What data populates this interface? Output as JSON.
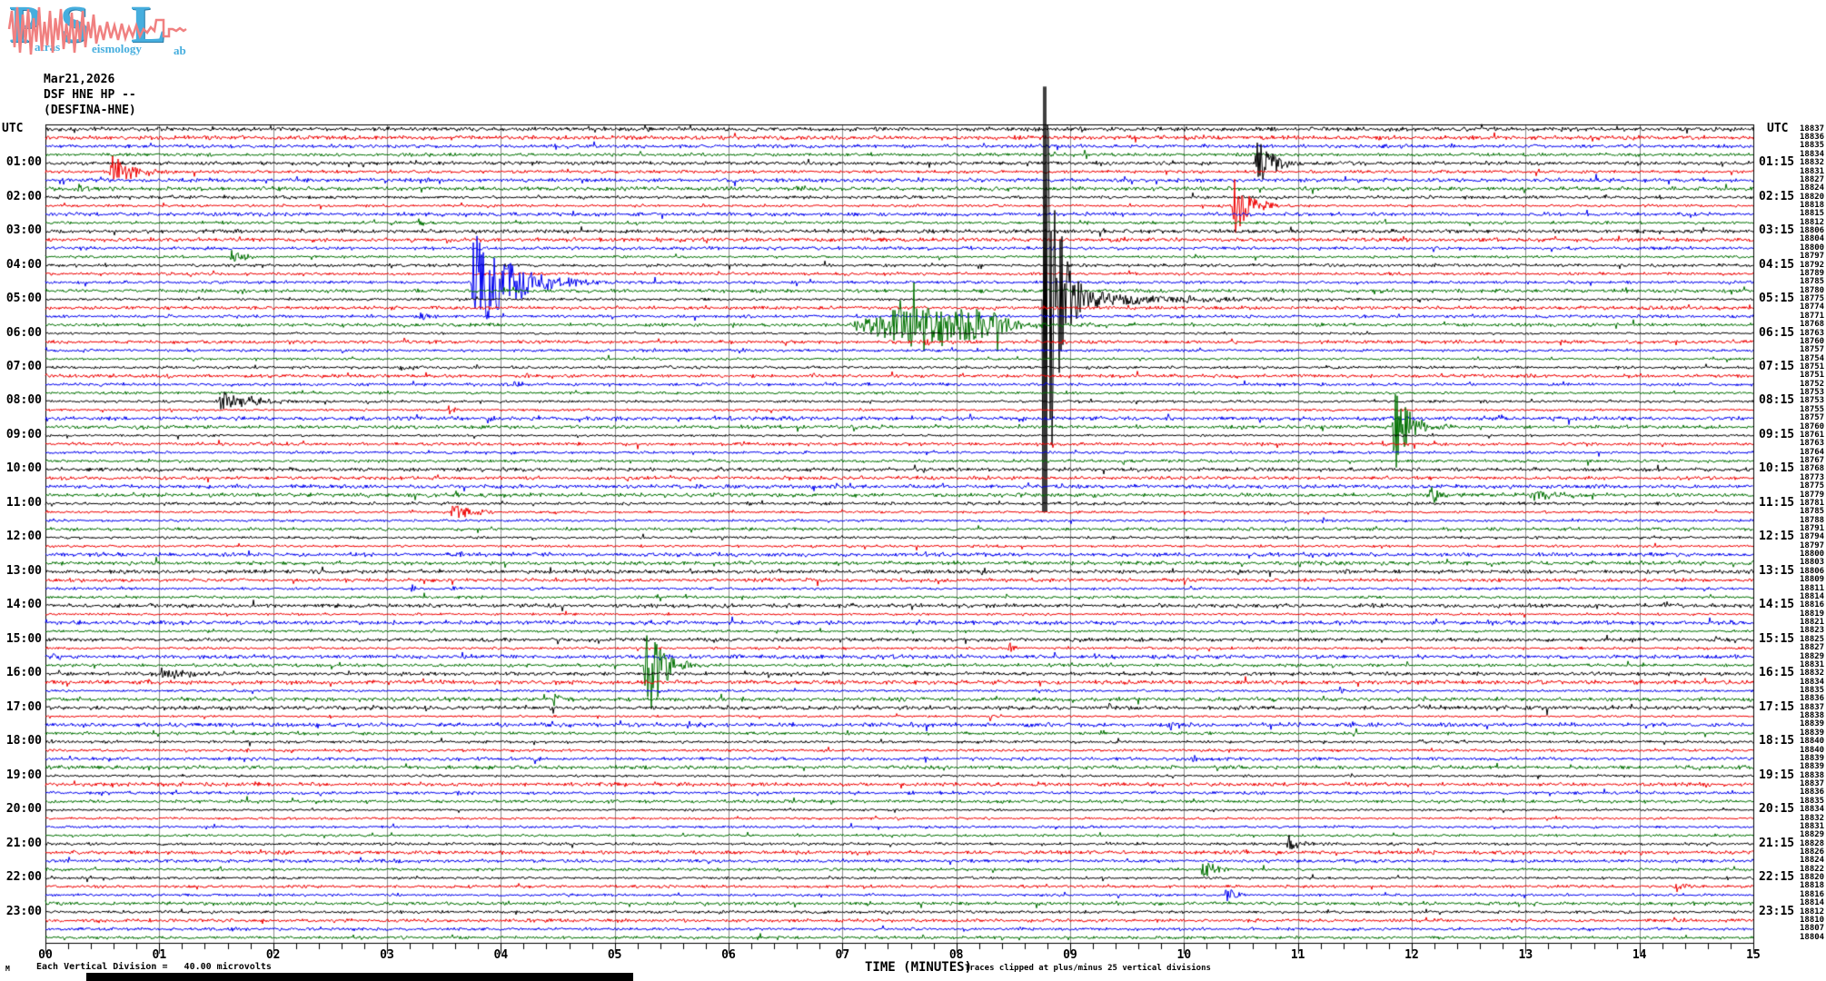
{
  "header": {
    "date": "Mar21,2026",
    "channel": "DSF HNE HP --",
    "station": "(DESFINA-HNE)"
  },
  "ui": {
    "utc_left": "UTC",
    "utc_right": "UTC",
    "bottom_artifact": "M"
  },
  "logo": {
    "letters": [
      {
        "ch": "P",
        "word": "atras"
      },
      {
        "ch": "S",
        "word": "eismology"
      },
      {
        "ch": "L",
        "word": "ab"
      }
    ],
    "letter_color": "#46aede",
    "trace_color": "#f08080"
  },
  "footer": {
    "scale_note": "Each Vertical Division =   40.00 microvolts",
    "axis_title": "TIME (MINUTES)",
    "clip_note": "Traces clipped at plus/minus 25 vertical divisions"
  },
  "chart_data": {
    "type": "line",
    "subtype": "helicorder-seismogram",
    "date": "Mar21,2026",
    "station_code": "DSF HNE HP --",
    "station_name": "(DESFINA-HNE)",
    "xlabel": "TIME (MINUTES)",
    "x_range_minutes": [
      0,
      15
    ],
    "x_tick_labels": [
      "00",
      "01",
      "02",
      "03",
      "04",
      "05",
      "06",
      "07",
      "08",
      "09",
      "10",
      "11",
      "12",
      "13",
      "14",
      "15"
    ],
    "minor_ticks_per_minute": 5,
    "rows": 96,
    "row_start_time": "00:00",
    "minutes_per_row": 15,
    "trace_color_cycle": [
      "#000000",
      "#f00000",
      "#0000f0",
      "#007000"
    ],
    "grid_color": "#8c8c8c",
    "clip_divisions": 25,
    "left_time_labels": [
      "01:00",
      "02:00",
      "03:00",
      "04:00",
      "05:00",
      "06:00",
      "07:00",
      "08:00",
      "09:00",
      "10:00",
      "11:00",
      "12:00",
      "13:00",
      "14:00",
      "15:00",
      "16:00",
      "17:00",
      "18:00",
      "19:00",
      "20:00",
      "21:00",
      "22:00",
      "23:00"
    ],
    "right_time_labels": [
      "01:15",
      "02:15",
      "03:15",
      "04:15",
      "05:15",
      "06:15",
      "07:15",
      "08:15",
      "09:15",
      "10:15",
      "11:15",
      "12:15",
      "13:15",
      "14:15",
      "15:15",
      "16:15",
      "17:15",
      "18:15",
      "19:15",
      "20:15",
      "21:15",
      "22:15",
      "23:15"
    ],
    "right_trace_values": [
      "18837",
      "18836",
      "18835",
      "18834",
      "18832",
      "18831",
      "18827",
      "18824",
      "18820",
      "18818",
      "18815",
      "18812",
      "18806",
      "18804",
      "18800",
      "18797",
      "18792",
      "18789",
      "18785",
      "18780",
      "18775",
      "18774",
      "18771",
      "18768",
      "18763",
      "18760",
      "18757",
      "18754",
      "18751",
      "18751",
      "18752",
      "18753",
      "18753",
      "18755",
      "18757",
      "18760",
      "18761",
      "18763",
      "18764",
      "18767",
      "18768",
      "18773",
      "18775",
      "18779",
      "18781",
      "18785",
      "18788",
      "18791",
      "18794",
      "18797",
      "18800",
      "18803",
      "18806",
      "18809",
      "18811",
      "18814",
      "18816",
      "18819",
      "18821",
      "18823",
      "18825",
      "18827",
      "18829",
      "18831",
      "18832",
      "18834",
      "18835",
      "18836",
      "18837",
      "18838",
      "18839",
      "18839",
      "18840",
      "18840",
      "18839",
      "18839",
      "18838",
      "18837",
      "18836",
      "18835",
      "18834",
      "18832",
      "18831",
      "18829",
      "18828",
      "18826",
      "18824",
      "18822",
      "18820",
      "18818",
      "18816",
      "18814",
      "18812",
      "18810",
      "18807",
      "18804"
    ],
    "events": [
      {
        "row": 0,
        "t": 9.08,
        "amp": 5,
        "dur": 0.06,
        "kind": "burst"
      },
      {
        "row": 0,
        "t": 11.2,
        "amp": 6,
        "dur": 0.08,
        "kind": "burst"
      },
      {
        "row": 4,
        "t": 10.62,
        "amp": 34,
        "dur": 0.22,
        "kind": "burst"
      },
      {
        "row": 5,
        "t": 0.56,
        "amp": 24,
        "dur": 0.3,
        "kind": "burst"
      },
      {
        "row": 7,
        "t": 0.28,
        "amp": 9,
        "dur": 0.15,
        "kind": "burst"
      },
      {
        "row": 9,
        "t": 10.42,
        "amp": 42,
        "dur": 0.22,
        "kind": "burst"
      },
      {
        "row": 11,
        "t": 3.25,
        "amp": 7,
        "dur": 0.12,
        "kind": "burst"
      },
      {
        "row": 15,
        "t": 1.62,
        "amp": 10,
        "dur": 0.15,
        "kind": "burst"
      },
      {
        "row": 18,
        "t": 3.74,
        "amp": 64,
        "dur": 0.55,
        "kind": "burst"
      },
      {
        "row": 20,
        "t": 8.76,
        "amp": 300,
        "dur": 0.3,
        "kind": "clip"
      },
      {
        "row": 22,
        "t": 3.28,
        "amp": 8,
        "dur": 0.15,
        "kind": "burst"
      },
      {
        "row": 23,
        "t": 7.06,
        "amp": 22,
        "dur": 1.56,
        "kind": "spindle",
        "spike": 42
      },
      {
        "row": 25,
        "t": 7.72,
        "amp": 9,
        "dur": 0.08,
        "kind": "burst"
      },
      {
        "row": 28,
        "t": 3.1,
        "amp": 5,
        "dur": 0.25,
        "kind": "burst"
      },
      {
        "row": 30,
        "t": 4.1,
        "amp": 8,
        "dur": 0.1,
        "kind": "burst"
      },
      {
        "row": 32,
        "t": 1.52,
        "amp": 13,
        "dur": 0.5,
        "kind": "burst"
      },
      {
        "row": 33,
        "t": 3.52,
        "amp": 9,
        "dur": 0.1,
        "kind": "burst"
      },
      {
        "row": 35,
        "t": 11.83,
        "amp": 54,
        "dur": 0.22,
        "kind": "spiky"
      },
      {
        "row": 39,
        "t": 9.45,
        "amp": 6,
        "dur": 0.08,
        "kind": "burst"
      },
      {
        "row": 43,
        "t": 12.15,
        "amp": 16,
        "dur": 0.1,
        "kind": "spiky"
      },
      {
        "row": 43,
        "t": 13.05,
        "amp": 6,
        "dur": 0.3,
        "kind": "burst"
      },
      {
        "row": 45,
        "t": 3.55,
        "amp": 14,
        "dur": 0.25,
        "kind": "burst"
      },
      {
        "row": 46,
        "t": 11.2,
        "amp": 6,
        "dur": 0.1,
        "kind": "burst"
      },
      {
        "row": 54,
        "t": 3.2,
        "amp": 7,
        "dur": 0.1,
        "kind": "burst"
      },
      {
        "row": 54,
        "t": 3.56,
        "amp": 6,
        "dur": 0.08,
        "kind": "burst"
      },
      {
        "row": 61,
        "t": 8.45,
        "amp": 11,
        "dur": 0.06,
        "kind": "burst"
      },
      {
        "row": 62,
        "t": 0.05,
        "amp": 8,
        "dur": 0.08,
        "kind": "burst"
      },
      {
        "row": 62,
        "t": 9.2,
        "amp": 6,
        "dur": 0.06,
        "kind": "burst"
      },
      {
        "row": 63,
        "t": 5.25,
        "amp": 50,
        "dur": 0.26,
        "kind": "spiky"
      },
      {
        "row": 64,
        "t": 1.0,
        "amp": 9,
        "dur": 0.4,
        "kind": "burst"
      },
      {
        "row": 66,
        "t": 11.35,
        "amp": 7,
        "dur": 0.08,
        "kind": "burst"
      },
      {
        "row": 67,
        "t": 4.45,
        "amp": 11,
        "dur": 0.12,
        "kind": "spiky"
      },
      {
        "row": 69,
        "t": 8.28,
        "amp": 8,
        "dur": 0.06,
        "kind": "burst"
      },
      {
        "row": 70,
        "t": 9.85,
        "amp": 9,
        "dur": 0.12,
        "kind": "burst"
      },
      {
        "row": 74,
        "t": 10.05,
        "amp": 8,
        "dur": 0.1,
        "kind": "burst"
      },
      {
        "row": 75,
        "t": 10.4,
        "amp": 6,
        "dur": 0.08,
        "kind": "burst"
      },
      {
        "row": 78,
        "t": 3.6,
        "amp": 9,
        "dur": 0.06,
        "kind": "burst"
      },
      {
        "row": 84,
        "t": 9.3,
        "amp": 5,
        "dur": 0.08,
        "kind": "burst"
      },
      {
        "row": 84,
        "t": 10.9,
        "amp": 12,
        "dur": 0.2,
        "kind": "burst"
      },
      {
        "row": 87,
        "t": 10.15,
        "amp": 13,
        "dur": 0.18,
        "kind": "spiky"
      },
      {
        "row": 89,
        "t": 14.3,
        "amp": 7,
        "dur": 0.15,
        "kind": "burst"
      },
      {
        "row": 90,
        "t": 10.35,
        "amp": 12,
        "dur": 0.15,
        "kind": "burst"
      }
    ]
  }
}
